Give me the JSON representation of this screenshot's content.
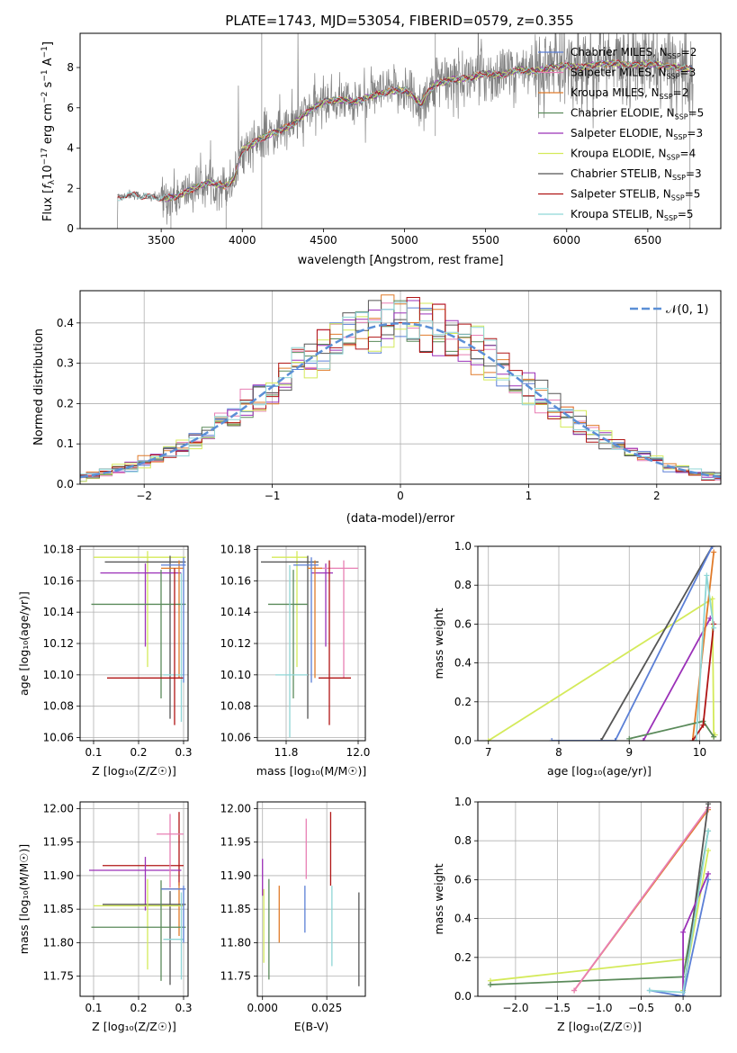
{
  "title": "PLATE=1743, MJD=53054, FIBERID=0579, z=0.355",
  "colors": {
    "chabrier_miles": "#5b7fd6",
    "salpeter_miles": "#e87fb4",
    "kroupa_miles": "#e07b2a",
    "chabrier_elodie": "#5a8a5a",
    "salpeter_elodie": "#9b30b8",
    "kroupa_elodie": "#d4ea5a",
    "chabrier_stelib": "#555555",
    "salpeter_stelib": "#b01515",
    "kroupa_stelib": "#8fd6d6",
    "normal_curve": "#5b8fd6",
    "data_spectrum": "#808080"
  },
  "legend_spectrum": [
    {
      "label": "Chabrier MILES, N",
      "sub": "SSP",
      "suffix": "=2",
      "color": "#5b7fd6"
    },
    {
      "label": "Salpeter MILES, N",
      "sub": "SSP",
      "suffix": "=3",
      "color": "#e87fb4"
    },
    {
      "label": "Kroupa MILES, N",
      "sub": "SSP",
      "suffix": "=2",
      "color": "#e07b2a"
    },
    {
      "label": "Chabrier ELODIE, N",
      "sub": "SSP",
      "suffix": "=5",
      "color": "#5a8a5a"
    },
    {
      "label": "Salpeter ELODIE, N",
      "sub": "SSP",
      "suffix": "=3",
      "color": "#9b30b8"
    },
    {
      "label": "Kroupa ELODIE, N",
      "sub": "SSP",
      "suffix": "=4",
      "color": "#d4ea5a"
    },
    {
      "label": "Chabrier STELIB, N",
      "sub": "SSP",
      "suffix": "=3",
      "color": "#555555"
    },
    {
      "label": "Salpeter STELIB, N",
      "sub": "SSP",
      "suffix": "=5",
      "color": "#b01515"
    },
    {
      "label": "Kroupa STELIB, N",
      "sub": "SSP",
      "suffix": "=5",
      "color": "#8fd6d6"
    }
  ],
  "legend_hist": {
    "label": "𝒩(0, 1)"
  },
  "chart_data": [
    {
      "id": "spectrum",
      "type": "line",
      "xlabel": "wavelength [Angstrom, rest frame]",
      "ylabel_parts": {
        "a": "Flux [",
        "b": "f",
        "c": "λ",
        "d": "10",
        "e": "−17",
        "f": " erg cm",
        "g": "−2",
        "h": " s",
        "i": "−1",
        "j": " A",
        "k": "−1",
        "l": "]"
      },
      "xlim": [
        3000,
        6950
      ],
      "ylim": [
        0,
        9.7
      ],
      "xticks": [
        3500,
        4000,
        4500,
        5000,
        5500,
        6000,
        6500
      ],
      "yticks": [
        0,
        2,
        4,
        6,
        8
      ],
      "continuum": [
        [
          3230,
          1.5
        ],
        [
          3300,
          1.7
        ],
        [
          3400,
          1.6
        ],
        [
          3500,
          1.5
        ],
        [
          3600,
          1.6
        ],
        [
          3700,
          2.0
        ],
        [
          3800,
          2.3
        ],
        [
          3900,
          2.1
        ],
        [
          3950,
          2.5
        ],
        [
          4000,
          3.9
        ],
        [
          4100,
          4.4
        ],
        [
          4200,
          4.8
        ],
        [
          4300,
          5.1
        ],
        [
          4400,
          5.8
        ],
        [
          4500,
          6.3
        ],
        [
          4600,
          6.4
        ],
        [
          4700,
          6.3
        ],
        [
          4800,
          6.6
        ],
        [
          4900,
          6.8
        ],
        [
          5000,
          6.9
        ],
        [
          5100,
          6.2
        ],
        [
          5150,
          6.8
        ],
        [
          5200,
          7.2
        ],
        [
          5300,
          7.4
        ],
        [
          5400,
          7.5
        ],
        [
          5500,
          7.7
        ],
        [
          5600,
          7.6
        ],
        [
          5700,
          7.9
        ],
        [
          5800,
          7.8
        ],
        [
          5900,
          8.0
        ],
        [
          6000,
          8.1
        ],
        [
          6100,
          8.0
        ],
        [
          6200,
          8.2
        ],
        [
          6300,
          8.2
        ],
        [
          6400,
          8.1
        ],
        [
          6500,
          8.2
        ],
        [
          6600,
          8.1
        ],
        [
          6700,
          8.0
        ],
        [
          6780,
          7.9
        ]
      ]
    },
    {
      "id": "hist",
      "type": "histogram",
      "xlabel": "(data-model)/error",
      "ylabel": "Normed distribution",
      "xlim": [
        -2.5,
        2.5
      ],
      "ylim": [
        0,
        0.48
      ],
      "xticks": [
        -2,
        -1,
        0,
        1,
        2
      ],
      "yticks": [
        0.0,
        0.1,
        0.2,
        0.3,
        0.4
      ],
      "bin_width": 0.1,
      "grid": true,
      "legend_position": "top-right"
    },
    {
      "id": "age_Z",
      "type": "errorbar",
      "xlabel": "Z [log₁₀(Z/Z☉)]",
      "ylabel": "age  [log₁₀(age/yr)]",
      "xlim": [
        0.07,
        0.31
      ],
      "ylim": [
        10.058,
        10.182
      ],
      "xticks": [
        0.1,
        0.2,
        0.3
      ],
      "yticks": [
        10.06,
        10.08,
        10.1,
        10.12,
        10.14,
        10.16,
        10.18
      ],
      "points": [
        {
          "c": "kroupa_elodie",
          "x": 0.22,
          "xerr": [
            0.12,
            0.085
          ],
          "y": 10.175,
          "yerr": [
            0.07,
            0.004
          ]
        },
        {
          "c": "chabrier_stelib",
          "x": 0.27,
          "xerr": [
            0.145,
            0.035
          ],
          "y": 10.172,
          "yerr": [
            0.1,
            0.004
          ]
        },
        {
          "c": "salpeter_elodie",
          "x": 0.215,
          "xerr": [
            0.1,
            0.08
          ],
          "y": 10.165,
          "yerr": [
            0.047,
            0.006
          ]
        },
        {
          "c": "kroupa_miles",
          "x": 0.29,
          "xerr": [
            0.04,
            0.01
          ],
          "y": 10.168,
          "yerr": [
            0.07,
            0.005
          ]
        },
        {
          "c": "chabrier_elodie",
          "x": 0.25,
          "xerr": [
            0.155,
            0.055
          ],
          "y": 10.145,
          "yerr": [
            0.06,
            0.022
          ]
        },
        {
          "c": "kroupa_stelib",
          "x": 0.295,
          "xerr": [
            0.04,
            0.005
          ],
          "y": 10.1,
          "yerr": [
            0.03,
            0.065
          ]
        },
        {
          "c": "salpeter_stelib",
          "x": 0.28,
          "xerr": [
            0.15,
            0.02
          ],
          "y": 10.098,
          "yerr": [
            0.03,
            0.07
          ]
        },
        {
          "c": "chabrier_miles",
          "x": 0.3,
          "xerr": [
            0.05,
            0.005
          ],
          "y": 10.17,
          "yerr": [
            0.075,
            0.005
          ]
        }
      ]
    },
    {
      "id": "age_mass",
      "type": "errorbar",
      "xlabel": "mass [log₁₀(M/M☉)]",
      "ylabel": "",
      "xlim": [
        11.72,
        12.02
      ],
      "ylim": [
        10.058,
        10.182
      ],
      "xticks": [
        11.8,
        12.0
      ],
      "yticks": [
        10.06,
        10.08,
        10.1,
        10.12,
        10.14,
        10.16,
        10.18
      ],
      "points": [
        {
          "c": "kroupa_elodie",
          "x": 11.83,
          "xerr": [
            0.07,
            0.03
          ],
          "y": 10.175,
          "yerr": [
            0.07,
            0.004
          ]
        },
        {
          "c": "chabrier_stelib",
          "x": 11.86,
          "xerr": [
            0.13,
            0.03
          ],
          "y": 10.172,
          "yerr": [
            0.1,
            0.004
          ]
        },
        {
          "c": "salpeter_elodie",
          "x": 11.91,
          "xerr": [
            0.04,
            0.02
          ],
          "y": 10.165,
          "yerr": [
            0.047,
            0.006
          ]
        },
        {
          "c": "salpeter_miles",
          "x": 11.96,
          "xerr": [
            0.08,
            0.04
          ],
          "y": 10.168,
          "yerr": [
            0.07,
            0.005
          ]
        },
        {
          "c": "kroupa_miles",
          "x": 11.88,
          "xerr": [
            0.02,
            0.02
          ],
          "y": 10.168,
          "yerr": [
            0.07,
            0.005
          ]
        },
        {
          "c": "chabrier_elodie",
          "x": 11.82,
          "xerr": [
            0.07,
            0.04
          ],
          "y": 10.145,
          "yerr": [
            0.06,
            0.022
          ]
        },
        {
          "c": "kroupa_stelib",
          "x": 11.81,
          "xerr": [
            0.04,
            0.05
          ],
          "y": 10.1,
          "yerr": [
            0.04,
            0.07
          ]
        },
        {
          "c": "salpeter_stelib",
          "x": 11.92,
          "xerr": [
            0.03,
            0.06
          ],
          "y": 10.098,
          "yerr": [
            0.03,
            0.075
          ]
        },
        {
          "c": "chabrier_miles",
          "x": 11.87,
          "xerr": [
            0.05,
            0.02
          ],
          "y": 10.17,
          "yerr": [
            0.075,
            0.005
          ]
        }
      ]
    },
    {
      "id": "mw_age",
      "type": "line",
      "xlabel": "age  [log₁₀(age/yr)]",
      "ylabel": "mass weight",
      "xlim": [
        6.85,
        10.3
      ],
      "ylim": [
        0,
        1
      ],
      "xticks": [
        7,
        8,
        9,
        10
      ],
      "yticks": [
        0.0,
        0.2,
        0.4,
        0.6,
        0.8,
        1.0
      ],
      "series": [
        {
          "c": "kroupa_elodie",
          "pts": [
            [
              7,
              0
            ],
            [
              10.18,
              0.73
            ],
            [
              10.2,
              0.02
            ],
            [
              10.22,
              0.03
            ]
          ]
        },
        {
          "c": "chabrier_stelib",
          "pts": [
            [
              8.6,
              0
            ],
            [
              10.18,
              1.0
            ]
          ]
        },
        {
          "c": "chabrier_miles",
          "pts": [
            [
              7.9,
              0
            ],
            [
              8.8,
              0.0
            ],
            [
              10.18,
              1.0
            ]
          ]
        },
        {
          "c": "salpeter_elodie",
          "pts": [
            [
              9.2,
              0
            ],
            [
              10.15,
              0.63
            ]
          ]
        },
        {
          "c": "kroupa_miles",
          "pts": [
            [
              9.9,
              0
            ],
            [
              10.2,
              0.97
            ]
          ]
        },
        {
          "c": "chabrier_elodie",
          "pts": [
            [
              9.0,
              0.01
            ],
            [
              10.05,
              0.1
            ],
            [
              10.2,
              0.02
            ]
          ]
        },
        {
          "c": "salpeter_stelib",
          "pts": [
            [
              9.9,
              0.0
            ],
            [
              10.05,
              0.08
            ],
            [
              10.2,
              0.6
            ]
          ]
        },
        {
          "c": "kroupa_stelib",
          "pts": [
            [
              9.95,
              0
            ],
            [
              10.1,
              0.85
            ],
            [
              10.2,
              0.58
            ]
          ]
        }
      ]
    },
    {
      "id": "mass_Z",
      "type": "errorbar",
      "xlabel": "Z [log₁₀(Z/Z☉)]",
      "ylabel": "mass [log₁₀(M/M☉)]",
      "xlim": [
        0.07,
        0.31
      ],
      "ylim": [
        11.72,
        12.01
      ],
      "xticks": [
        0.1,
        0.2,
        0.3
      ],
      "yticks": [
        11.75,
        11.8,
        11.85,
        11.9,
        11.95,
        12.0
      ],
      "points": [
        {
          "c": "salpeter_stelib",
          "x": 0.29,
          "xerr": [
            0.17,
            0.01
          ],
          "y": 11.915,
          "yerr": [
            0.03,
            0.08
          ]
        },
        {
          "c": "salpeter_elodie",
          "x": 0.215,
          "xerr": [
            0.125,
            0.08
          ],
          "y": 11.908,
          "yerr": [
            0.06,
            0.02
          ]
        },
        {
          "c": "salpeter_miles",
          "x": 0.27,
          "xerr": [
            0.03,
            0.03
          ],
          "y": 11.962,
          "yerr": [
            0.08,
            0.03
          ]
        },
        {
          "c": "kroupa_miles",
          "x": 0.29,
          "xerr": [
            0.04,
            0.01
          ],
          "y": 11.88,
          "yerr": [
            0.07,
            0.01
          ]
        },
        {
          "c": "chabrier_stelib",
          "x": 0.27,
          "xerr": [
            0.15,
            0.035
          ],
          "y": 11.857,
          "yerr": [
            0.12,
            0.02
          ]
        },
        {
          "c": "kroupa_elodie",
          "x": 0.22,
          "xerr": [
            0.12,
            0.08
          ],
          "y": 11.855,
          "yerr": [
            0.095,
            0.04
          ]
        },
        {
          "c": "chabrier_elodie",
          "x": 0.25,
          "xerr": [
            0.155,
            0.055
          ],
          "y": 11.823,
          "yerr": [
            0.08,
            0.07
          ]
        },
        {
          "c": "kroupa_stelib",
          "x": 0.295,
          "xerr": [
            0.04,
            0.005
          ],
          "y": 11.805,
          "yerr": [
            0.06,
            0.07
          ]
        },
        {
          "c": "chabrier_miles",
          "x": 0.3,
          "xerr": [
            0.05,
            0.005
          ],
          "y": 11.88,
          "yerr": [
            0.08,
            0.005
          ]
        }
      ]
    },
    {
      "id": "mass_ebv",
      "type": "errorbar",
      "xlabel": "E(B-V)",
      "ylabel": "",
      "xlim": [
        -0.002,
        0.04
      ],
      "ylim": [
        11.72,
        12.01
      ],
      "xticks": [
        0.0,
        0.025
      ],
      "yticks": [
        11.75,
        11.8,
        11.85,
        11.9,
        11.95,
        12.0
      ],
      "points": [
        {
          "c": "salpeter_elodie",
          "x": 0.0,
          "xerr": [
            0,
            0
          ],
          "y": 11.9,
          "yerr": [
            0.03,
            0.025
          ]
        },
        {
          "c": "kroupa_elodie",
          "x": 0.0005,
          "xerr": [
            0,
            0
          ],
          "y": 11.85,
          "yerr": [
            0.08,
            0.03
          ]
        },
        {
          "c": "chabrier_elodie",
          "x": 0.0025,
          "xerr": [
            0,
            0
          ],
          "y": 11.82,
          "yerr": [
            0.075,
            0.075
          ]
        },
        {
          "c": "kroupa_miles",
          "x": 0.0065,
          "xerr": [
            0,
            0
          ],
          "y": 11.845,
          "yerr": [
            0.045,
            0.04
          ]
        },
        {
          "c": "chabrier_miles",
          "x": 0.0165,
          "xerr": [
            0,
            0
          ],
          "y": 11.845,
          "yerr": [
            0.03,
            0.04
          ]
        },
        {
          "c": "salpeter_miles",
          "x": 0.017,
          "xerr": [
            0,
            0
          ],
          "y": 11.94,
          "yerr": [
            0.045,
            0.045
          ]
        },
        {
          "c": "salpeter_stelib",
          "x": 0.0265,
          "xerr": [
            0,
            0
          ],
          "y": 11.94,
          "yerr": [
            0.055,
            0.055
          ]
        },
        {
          "c": "kroupa_stelib",
          "x": 0.027,
          "xerr": [
            0,
            0
          ],
          "y": 11.825,
          "yerr": [
            0.06,
            0.06
          ]
        },
        {
          "c": "chabrier_stelib",
          "x": 0.0375,
          "xerr": [
            0,
            0
          ],
          "y": 11.805,
          "yerr": [
            0.07,
            0.07
          ]
        }
      ]
    },
    {
      "id": "mw_Z",
      "type": "line",
      "xlabel": "Z [log₁₀(Z/Z☉)]",
      "ylabel": "mass weight",
      "xlim": [
        -2.45,
        0.45
      ],
      "ylim": [
        0,
        1
      ],
      "xticks": [
        -2.0,
        -1.5,
        -1.0,
        -0.5,
        0.0
      ],
      "yticks": [
        0.0,
        0.2,
        0.4,
        0.6,
        0.8,
        1.0
      ],
      "series": [
        {
          "c": "kroupa_elodie",
          "pts": [
            [
              -2.3,
              0.08
            ],
            [
              0.0,
              0.19
            ],
            [
              0.0,
              0.03
            ],
            [
              0.3,
              0.75
            ]
          ]
        },
        {
          "c": "chabrier_elodie",
          "pts": [
            [
              -2.3,
              0.06
            ],
            [
              0.0,
              0.1
            ],
            [
              0.3,
              0.85
            ]
          ]
        },
        {
          "c": "kroupa_miles",
          "pts": [
            [
              -1.3,
              0.03
            ],
            [
              0.3,
              0.96
            ]
          ]
        },
        {
          "c": "salpeter_miles",
          "pts": [
            [
              -1.3,
              0.03
            ],
            [
              0.3,
              0.97
            ]
          ]
        },
        {
          "c": "chabrier_stelib",
          "pts": [
            [
              0.0,
              0.0
            ],
            [
              0.3,
              0.99
            ]
          ]
        },
        {
          "c": "salpeter_elodie",
          "pts": [
            [
              0.0,
              0.0
            ],
            [
              0.0,
              0.33
            ],
            [
              0.3,
              0.63
            ]
          ]
        },
        {
          "c": "chabrier_miles",
          "pts": [
            [
              -0.4,
              0.03
            ],
            [
              0.0,
              0.0
            ],
            [
              0.3,
              0.6
            ]
          ]
        },
        {
          "c": "kroupa_stelib",
          "pts": [
            [
              -0.4,
              0.03
            ],
            [
              0.0,
              0.02
            ],
            [
              0.3,
              0.85
            ]
          ]
        }
      ]
    }
  ]
}
